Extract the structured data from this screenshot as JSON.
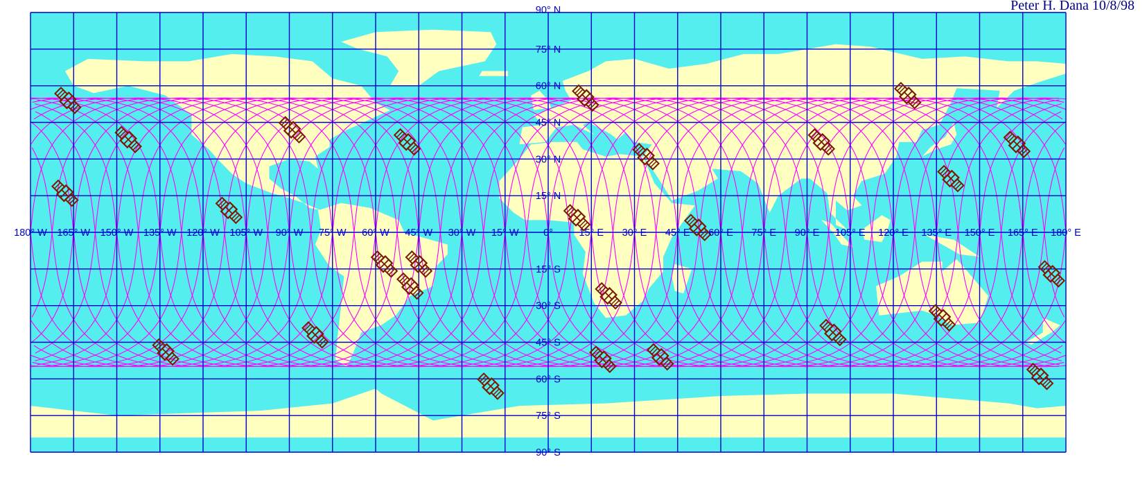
{
  "credit": "Peter H. Dana 10/8/98",
  "colors": {
    "ocean": "#55eeee",
    "land": "#ffffc0",
    "grid": "#0000cc",
    "orbits": "#ff00ff",
    "satellites": "#7a1a00",
    "labels": "#0000cc",
    "background": "#ffffff"
  },
  "grid": {
    "lon_step": 15,
    "lat_lines": [
      90,
      75,
      60,
      45,
      30,
      15,
      0,
      -15,
      -30,
      -45,
      -60,
      -75,
      -90
    ]
  },
  "lon_labels": [
    "180° W",
    "165° W",
    "150° W",
    "135° W",
    "120° W",
    "105° W",
    "90° W",
    "75° W",
    "60° W",
    "45° W",
    "30° W",
    "15° W",
    "0°",
    "15° E",
    "30° E",
    "45° E",
    "60° E",
    "75° E",
    "90° E",
    "105° E",
    "120° E",
    "135° E",
    "150° E",
    "165° E",
    "180° E"
  ],
  "lat_labels": [
    {
      "lat": 90,
      "text": "90° N"
    },
    {
      "lat": 75,
      "text": "75° N"
    },
    {
      "lat": 60,
      "text": "60° N"
    },
    {
      "lat": 45,
      "text": "45° N"
    },
    {
      "lat": 30,
      "text": "30° N"
    },
    {
      "lat": 15,
      "text": "15° N"
    },
    {
      "lat": -15,
      "text": "15° S"
    },
    {
      "lat": -30,
      "text": "30° S"
    },
    {
      "lat": -45,
      "text": "45° S"
    },
    {
      "lat": -60,
      "text": "60° S"
    },
    {
      "lat": -75,
      "text": "75° S"
    },
    {
      "lat": -90,
      "text": "90° S"
    }
  ],
  "orbit": {
    "inclination_deg": 55,
    "plane_count": 6,
    "tracks_per_plane": 4
  },
  "satellite_icon": "gps-satellite-icon",
  "satellites": [
    {
      "lon": -167,
      "lat": 54
    },
    {
      "lon": -146,
      "lat": 38
    },
    {
      "lon": -168,
      "lat": 16
    },
    {
      "lon": -133,
      "lat": -49
    },
    {
      "lon": -111,
      "lat": 9
    },
    {
      "lon": -81,
      "lat": -42
    },
    {
      "lon": -89,
      "lat": 42
    },
    {
      "lon": -57,
      "lat": -13
    },
    {
      "lon": -45,
      "lat": -13
    },
    {
      "lon": -48,
      "lat": -22
    },
    {
      "lon": -49,
      "lat": 37
    },
    {
      "lon": -20,
      "lat": -63
    },
    {
      "lon": 13,
      "lat": 55
    },
    {
      "lon": 10,
      "lat": 6
    },
    {
      "lon": 21,
      "lat": -26
    },
    {
      "lon": 19,
      "lat": -52
    },
    {
      "lon": 34,
      "lat": 31
    },
    {
      "lon": 39,
      "lat": -51
    },
    {
      "lon": 52,
      "lat": 2
    },
    {
      "lon": 95,
      "lat": 37
    },
    {
      "lon": 99,
      "lat": -41
    },
    {
      "lon": 125,
      "lat": 56
    },
    {
      "lon": 140,
      "lat": 22
    },
    {
      "lon": 137,
      "lat": -35
    },
    {
      "lon": 163,
      "lat": 36
    },
    {
      "lon": 175,
      "lat": -17
    },
    {
      "lon": 171,
      "lat": -59
    }
  ]
}
